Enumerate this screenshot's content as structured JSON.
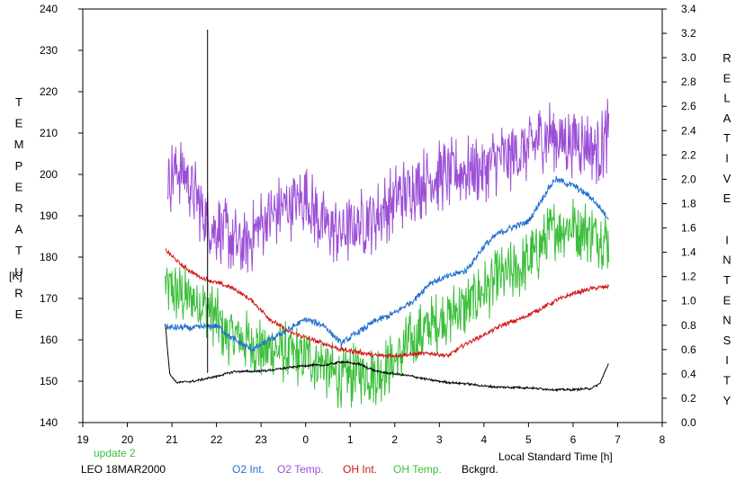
{
  "chart_data": {
    "type": "line",
    "x_axis": {
      "label": "Local Standard Time [h]",
      "ticks": [
        "19",
        "20",
        "21",
        "22",
        "23",
        "0",
        "1",
        "2",
        "3",
        "4",
        "5",
        "6",
        "7",
        "8"
      ],
      "range_hours": [
        19,
        32
      ]
    },
    "y_left": {
      "label": "TEMPERATURE",
      "unit": "[K]",
      "range": [
        140,
        240
      ],
      "ticks": [
        "140",
        "150",
        "160",
        "170",
        "180",
        "190",
        "200",
        "210",
        "220",
        "230",
        "240"
      ]
    },
    "y_right": {
      "label": "RELATIVE INTENSITY",
      "range": [
        0.0,
        3.4
      ],
      "ticks": [
        "0.0",
        "0.2",
        "0.4",
        "0.6",
        "0.8",
        "1.0",
        "1.2",
        "1.4",
        "1.6",
        "1.8",
        "2.0",
        "2.2",
        "2.4",
        "2.6",
        "2.8",
        "3.0",
        "3.2",
        "3.4"
      ]
    },
    "update_text": "update 2",
    "station_text": "LEO 18MAR2000",
    "grid": false,
    "legend_position": "bottom",
    "series": [
      {
        "name": "O2 Int.",
        "color": "#1f6fd0",
        "axis": "right",
        "noise": 0.03,
        "x": [
          20.85,
          21.5,
          22.0,
          22.4,
          22.8,
          23.2,
          23.6,
          24.0,
          24.4,
          24.8,
          25.2,
          25.6,
          26.0,
          26.4,
          26.8,
          27.2,
          27.6,
          28.0,
          28.3,
          28.6,
          29.0,
          29.4,
          29.6,
          30.0,
          30.4,
          30.8
        ],
        "y": [
          0.78,
          0.78,
          0.8,
          0.68,
          0.6,
          0.68,
          0.76,
          0.85,
          0.8,
          0.65,
          0.75,
          0.84,
          0.9,
          1.0,
          1.15,
          1.2,
          1.25,
          1.45,
          1.55,
          1.6,
          1.65,
          1.9,
          2.0,
          1.95,
          1.85,
          1.68
        ]
      },
      {
        "name": "O2 Temp.",
        "color": "#9b4fd6",
        "axis": "left",
        "noise": 9,
        "x": [
          20.9,
          21.1,
          21.4,
          21.8,
          22.2,
          22.6,
          23.0,
          23.5,
          24.0,
          24.4,
          24.8,
          25.2,
          25.6,
          26.0,
          26.4,
          26.8,
          27.2,
          27.6,
          28.0,
          28.4,
          28.8,
          29.2,
          29.5,
          29.8,
          30.2,
          30.6,
          30.8
        ],
        "y": [
          198,
          202,
          198,
          188,
          186,
          182,
          188,
          192,
          194,
          188,
          186,
          188,
          190,
          194,
          197,
          199,
          200,
          201,
          202,
          204,
          205,
          208,
          210,
          208,
          208,
          206,
          210
        ]
      },
      {
        "name": "OH Int.",
        "color": "#d21616",
        "axis": "right",
        "noise": 0.02,
        "x": [
          20.85,
          21.2,
          21.6,
          22.0,
          22.4,
          22.8,
          23.2,
          23.6,
          24.0,
          24.4,
          24.8,
          25.2,
          25.6,
          26.0,
          26.4,
          26.8,
          27.2,
          27.6,
          28.0,
          28.4,
          28.8,
          29.2,
          29.6,
          30.0,
          30.4,
          30.8
        ],
        "y": [
          1.42,
          1.3,
          1.2,
          1.15,
          1.1,
          1.0,
          0.85,
          0.75,
          0.7,
          0.65,
          0.6,
          0.58,
          0.55,
          0.55,
          0.56,
          0.57,
          0.55,
          0.65,
          0.72,
          0.8,
          0.85,
          0.92,
          1.0,
          1.06,
          1.1,
          1.12
        ]
      },
      {
        "name": "OH Temp.",
        "color": "#3cbf3c",
        "axis": "left",
        "noise": 8,
        "x": [
          20.85,
          21.3,
          21.8,
          22.2,
          22.6,
          23.0,
          23.5,
          24.0,
          24.4,
          24.8,
          25.2,
          25.6,
          26.0,
          26.4,
          26.8,
          27.2,
          27.6,
          28.0,
          28.4,
          28.8,
          29.2,
          29.6,
          30.0,
          30.4,
          30.8
        ],
        "y": [
          173,
          170,
          168,
          162,
          160,
          158,
          157,
          156,
          154,
          150,
          152,
          152,
          155,
          160,
          163,
          166,
          168,
          172,
          175,
          177,
          181,
          187,
          188,
          186,
          184
        ]
      },
      {
        "name": "Bckgrd.",
        "color": "#000000",
        "axis": "right",
        "noise": 0.01,
        "x": [
          20.85,
          20.95,
          21.1,
          21.5,
          22.0,
          22.4,
          22.8,
          23.2,
          23.6,
          24.0,
          24.4,
          24.8,
          25.2,
          25.6,
          26.0,
          26.4,
          26.8,
          27.2,
          27.6,
          28.0,
          28.4,
          28.8,
          29.2,
          29.6,
          30.0,
          30.4,
          30.6,
          30.8
        ],
        "y": [
          0.82,
          0.4,
          0.33,
          0.34,
          0.38,
          0.42,
          0.42,
          0.43,
          0.45,
          0.47,
          0.47,
          0.5,
          0.48,
          0.42,
          0.4,
          0.38,
          0.35,
          0.33,
          0.32,
          0.3,
          0.29,
          0.29,
          0.28,
          0.27,
          0.27,
          0.28,
          0.32,
          0.49
        ]
      }
    ],
    "annotations": [
      {
        "type": "spike",
        "x": 21.8,
        "y_bottom": 152,
        "y_top": 235,
        "color": "#000000"
      }
    ]
  }
}
